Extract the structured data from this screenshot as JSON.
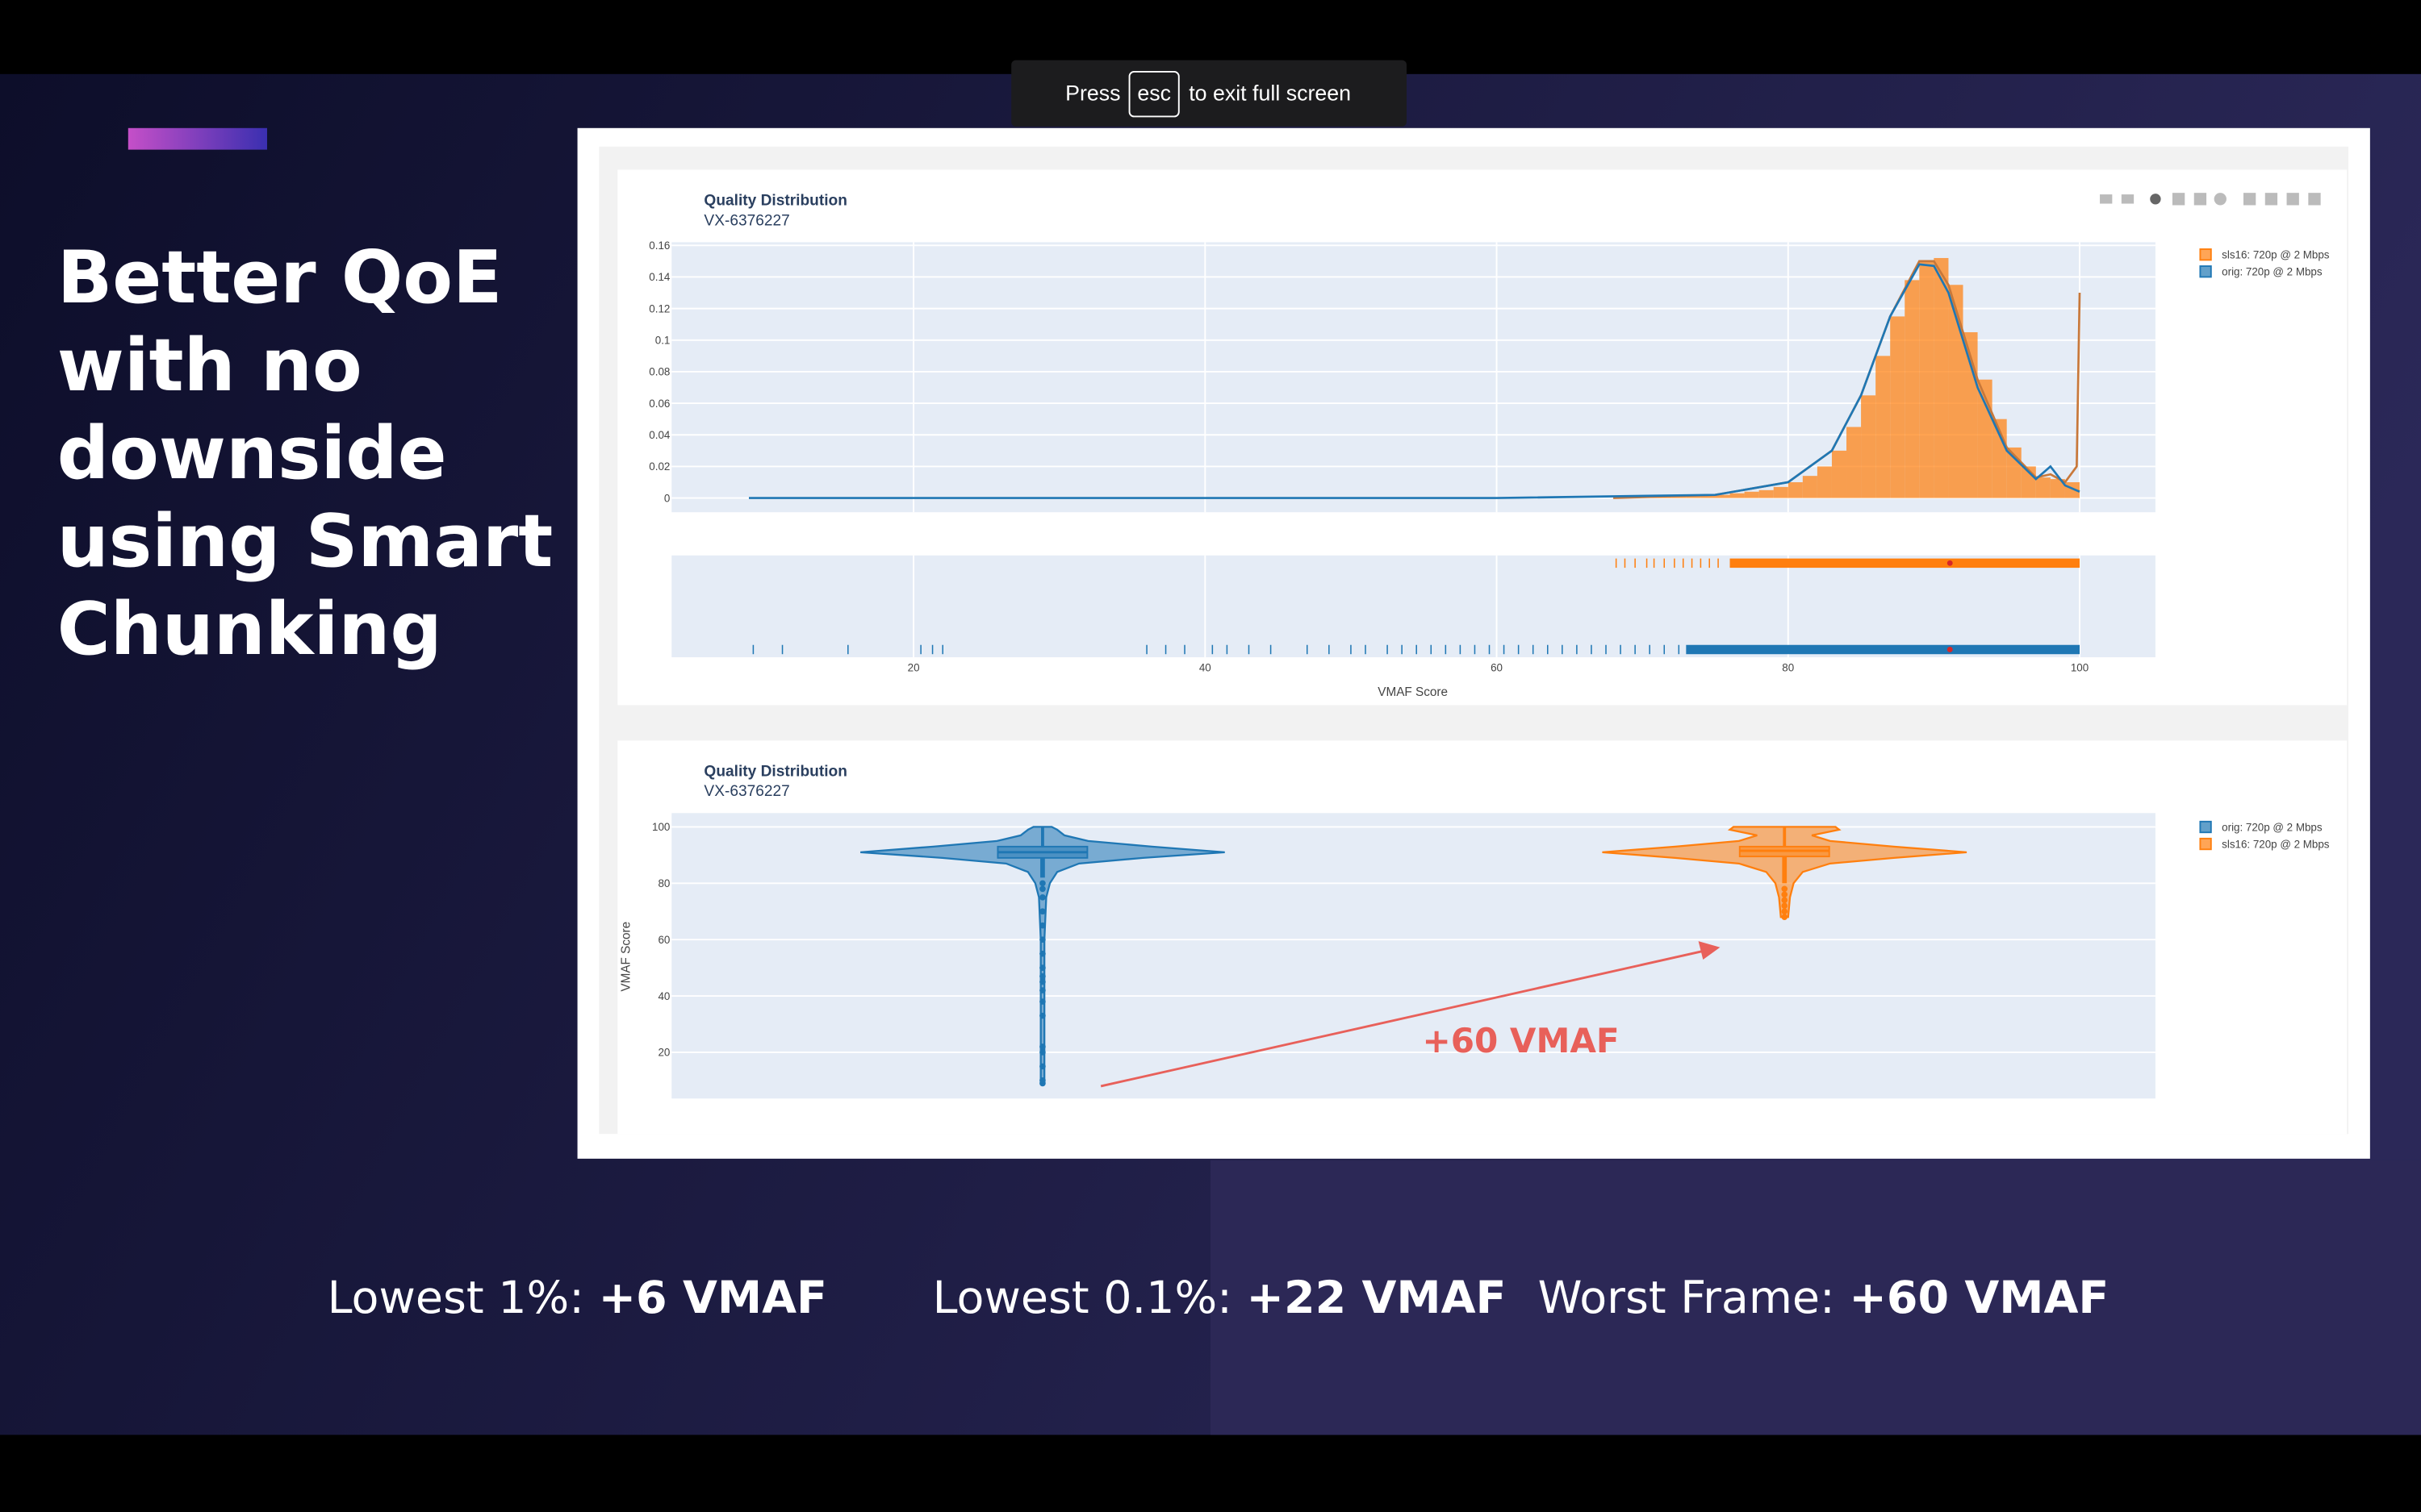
{
  "overlay": {
    "before": "Press",
    "key": "esc",
    "after": "to exit full screen"
  },
  "slide": {
    "title_lines": [
      "Better QoE",
      "with no",
      "downside",
      "using Smart",
      "Chunking"
    ],
    "stats": [
      {
        "label": "Lowest 1%:",
        "value": "+6 VMAF"
      },
      {
        "label": "Lowest 0.1%:",
        "value": "+22 VMAF"
      },
      {
        "label": "Worst Frame:",
        "value": "+60 VMAF"
      }
    ]
  },
  "charts": [
    {
      "type": "histogram",
      "title": "Quality Distribution",
      "subtitle": "VX-6376227",
      "xlabel": "VMAF Score",
      "xlim": [
        3.4,
        105.2
      ],
      "ylim": [
        -0.009,
        0.162
      ],
      "xticks": [
        20,
        40,
        60,
        80,
        100
      ],
      "yticks": [
        0,
        0.02,
        0.04,
        0.06,
        0.08,
        0.1,
        0.12,
        0.14,
        0.16
      ],
      "grid": true,
      "series": [
        {
          "name": "sls16: 720p @ 2 Mbps",
          "color": "#ff7f0e",
          "bins": [
            68,
            69,
            70,
            71,
            72,
            73,
            74,
            75,
            76,
            77,
            78,
            79,
            80,
            81,
            82,
            83,
            84,
            85,
            86,
            87,
            88,
            89,
            90,
            91,
            92,
            93,
            94,
            95,
            96,
            97,
            98,
            99,
            100
          ],
          "values": [
            0.001,
            0.001,
            0.001,
            0.001,
            0.001,
            0.002,
            0.002,
            0.002,
            0.003,
            0.004,
            0.005,
            0.007,
            0.01,
            0.014,
            0.02,
            0.03,
            0.045,
            0.065,
            0.09,
            0.115,
            0.138,
            0.15,
            0.152,
            0.135,
            0.105,
            0.075,
            0.05,
            0.032,
            0.02,
            0.013,
            0.012,
            0.01
          ],
          "curve": {
            "x": [
              68,
              75,
              80,
              83,
              85,
              87,
              89,
              90,
              91,
              92,
              93,
              95,
              97,
              98,
              99,
              99.8,
              100
            ],
            "y": [
              0,
              0.002,
              0.01,
              0.03,
              0.065,
              0.115,
              0.15,
              0.15,
              0.135,
              0.105,
              0.075,
              0.032,
              0.013,
              0.015,
              0.01,
              0.02,
              0.13
            ]
          },
          "rug": [
            68.2,
            68.8,
            69.5,
            70.3,
            70.8,
            71.5,
            72.2,
            72.8,
            73.4,
            74,
            74.6,
            75.2
          ],
          "rug_dense": [
            76,
            100
          ],
          "rug_marker": 91.1
        },
        {
          "name": "orig: 720p @ 2 Mbps",
          "color": "#1f77b4",
          "curve": {
            "x": [
              8.7,
              60,
              75,
              80,
              83,
              85,
              87,
              89,
              90,
              91,
              92,
              93,
              95,
              97,
              98,
              99,
              100
            ],
            "y": [
              0,
              0,
              0.002,
              0.01,
              0.03,
              0.065,
              0.115,
              0.148,
              0.147,
              0.13,
              0.1,
              0.07,
              0.03,
              0.012,
              0.02,
              0.008,
              0.004
            ]
          },
          "rug": [
            9,
            11,
            15.5,
            20.5,
            21.3,
            22,
            36,
            37.3,
            38.6,
            40.5,
            41.5,
            43,
            44.5,
            47,
            48.5,
            50,
            51,
            52.5,
            53.5,
            54.5,
            55.5,
            56.5,
            57.5,
            58.5,
            59.5,
            60.5,
            61.5,
            62.5,
            63.5,
            64.5,
            65.5,
            66.5,
            67.5,
            68.5,
            69.5,
            70.5,
            71.5,
            72.5
          ],
          "rug_dense": [
            73,
            100
          ],
          "rug_marker": 91.1
        }
      ]
    },
    {
      "type": "violin",
      "title": "Quality Distribution",
      "subtitle": "VX-6376227",
      "ylabel": "VMAF Score",
      "ylim": [
        3.6,
        104.9
      ],
      "yticks": [
        20,
        40,
        60,
        80,
        100
      ],
      "grid": true,
      "annotation": "+60 VMAF",
      "series": [
        {
          "name": "orig: 720p @ 2 Mbps",
          "color": "#1f77b4",
          "y": [
            9,
            20,
            40,
            60,
            75,
            80,
            84,
            87,
            89,
            91,
            93,
            95,
            97,
            99,
            100
          ],
          "density": [
            0.01,
            0.01,
            0.01,
            0.01,
            0.02,
            0.04,
            0.08,
            0.2,
            0.55,
            1.0,
            0.6,
            0.25,
            0.12,
            0.08,
            0.05
          ],
          "q1": 89,
          "median": 91,
          "q3": 93,
          "lower_fence": 82,
          "upper_fence": 100,
          "outliers": [
            9,
            10,
            15,
            20,
            22,
            33,
            38,
            42,
            45,
            47,
            50,
            55,
            60,
            65,
            70,
            75,
            78,
            80
          ]
        },
        {
          "name": "sls16: 720p @ 2 Mbps",
          "color": "#ff7f0e",
          "y": [
            68,
            75,
            80,
            84,
            87,
            89,
            91,
            93,
            95,
            97,
            99,
            100
          ],
          "density": [
            0.02,
            0.03,
            0.05,
            0.1,
            0.25,
            0.6,
            1.0,
            0.6,
            0.25,
            0.15,
            0.3,
            0.28
          ],
          "q1": 89.5,
          "median": 91.5,
          "q3": 93,
          "lower_fence": 80,
          "upper_fence": 100,
          "outliers": [
            68,
            70,
            72,
            74,
            76,
            78
          ]
        }
      ]
    }
  ]
}
